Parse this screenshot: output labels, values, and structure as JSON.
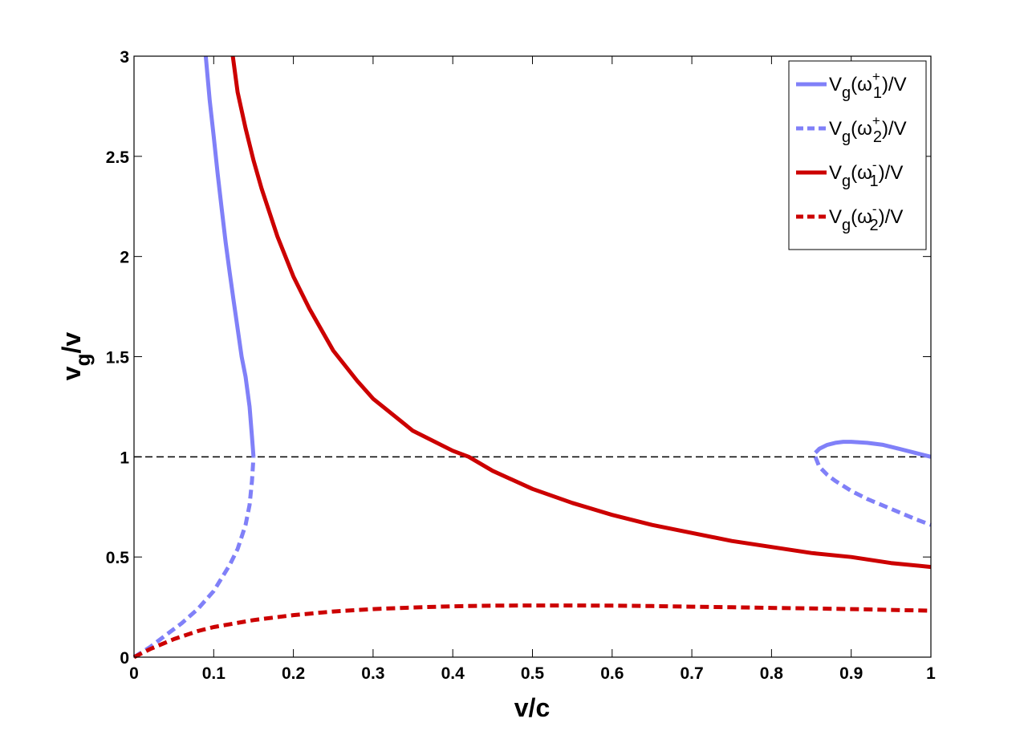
{
  "chart_data": {
    "type": "line",
    "xlabel": "v/c",
    "ylabel_main": "v",
    "ylabel_sub": "g",
    "ylabel_tail": "/v",
    "xlim": [
      0,
      1
    ],
    "ylim": [
      0,
      3
    ],
    "xticks": [
      0,
      0.1,
      0.2,
      0.3,
      0.4,
      0.5,
      0.6,
      0.7,
      0.8,
      0.9,
      1
    ],
    "xtick_labels": [
      "0",
      "0.1",
      "0.2",
      "0.3",
      "0.4",
      "0.5",
      "0.6",
      "0.7",
      "0.8",
      "0.9",
      "1"
    ],
    "yticks": [
      0,
      0.5,
      1,
      1.5,
      2,
      2.5,
      3
    ],
    "ytick_labels": [
      "0",
      "0.5",
      "1",
      "1.5",
      "2",
      "2.5",
      "3"
    ],
    "grid": false,
    "legend_position": "top-right",
    "reference_line": {
      "y": 1,
      "style": "dashed",
      "color": "#000000"
    },
    "series": [
      {
        "legend_main": "V",
        "legend_sub": "g",
        "legend_open": "(ω",
        "legend_sub2": "1",
        "legend_sup": "+",
        "legend_close": ")/V",
        "color": "#8080f8",
        "dash": "solid",
        "segments": [
          {
            "x": [
              0.09,
              0.095,
              0.1,
              0.105,
              0.11,
              0.115,
              0.12,
              0.125,
              0.13,
              0.135,
              0.14,
              0.145,
              0.148,
              0.15
            ],
            "y": [
              3.0,
              2.78,
              2.6,
              2.41,
              2.24,
              2.07,
              1.92,
              1.78,
              1.64,
              1.5,
              1.4,
              1.25,
              1.1,
              1.0
            ]
          },
          {
            "x": [
              0.855,
              0.86,
              0.87,
              0.88,
              0.89,
              0.9,
              0.92,
              0.94,
              0.96,
              0.98,
              1.0
            ],
            "y": [
              1.02,
              1.04,
              1.06,
              1.07,
              1.075,
              1.075,
              1.07,
              1.06,
              1.04,
              1.02,
              1.0
            ]
          }
        ]
      },
      {
        "legend_main": "V",
        "legend_sub": "g",
        "legend_open": "(ω",
        "legend_sub2": "2",
        "legend_sup": "+",
        "legend_close": ")/V",
        "color": "#8080f8",
        "dash": "dashed",
        "segments": [
          {
            "x": [
              0.0,
              0.02,
              0.04,
              0.06,
              0.08,
              0.1,
              0.12,
              0.13,
              0.14,
              0.145,
              0.148,
              0.15
            ],
            "y": [
              0.0,
              0.05,
              0.11,
              0.17,
              0.24,
              0.33,
              0.46,
              0.54,
              0.66,
              0.76,
              0.88,
              1.0
            ]
          },
          {
            "x": [
              0.855,
              0.86,
              0.87,
              0.88,
              0.9,
              0.92,
              0.95,
              0.98,
              1.0
            ],
            "y": [
              1.0,
              0.95,
              0.91,
              0.88,
              0.83,
              0.79,
              0.74,
              0.69,
              0.66
            ]
          }
        ]
      },
      {
        "legend_main": "V",
        "legend_sub": "g",
        "legend_open": "(ω",
        "legend_sub2": "1",
        "legend_sup": "-",
        "legend_close": ")/V",
        "color": "#cc0000",
        "dash": "solid",
        "segments": [
          {
            "x": [
              0.124,
              0.13,
              0.14,
              0.15,
              0.16,
              0.18,
              0.2,
              0.22,
              0.25,
              0.28,
              0.3,
              0.35,
              0.4,
              0.42,
              0.45,
              0.5,
              0.55,
              0.6,
              0.65,
              0.7,
              0.75,
              0.8,
              0.85,
              0.9,
              0.95,
              1.0
            ],
            "y": [
              3.0,
              2.82,
              2.64,
              2.48,
              2.34,
              2.1,
              1.9,
              1.74,
              1.53,
              1.38,
              1.29,
              1.13,
              1.03,
              1.0,
              0.93,
              0.84,
              0.77,
              0.71,
              0.66,
              0.62,
              0.58,
              0.55,
              0.52,
              0.5,
              0.47,
              0.45
            ]
          }
        ]
      },
      {
        "legend_main": "V",
        "legend_sub": "g",
        "legend_open": "(ω",
        "legend_sub2": "2",
        "legend_sup": "-",
        "legend_close": ")/V",
        "color": "#cc0000",
        "dash": "dashed",
        "segments": [
          {
            "x": [
              0.0,
              0.02,
              0.05,
              0.08,
              0.1,
              0.15,
              0.2,
              0.25,
              0.3,
              0.35,
              0.4,
              0.45,
              0.5,
              0.55,
              0.6,
              0.65,
              0.7,
              0.75,
              0.8,
              0.85,
              0.9,
              0.95,
              1.0
            ],
            "y": [
              0.0,
              0.04,
              0.09,
              0.13,
              0.15,
              0.185,
              0.21,
              0.228,
              0.24,
              0.248,
              0.254,
              0.257,
              0.258,
              0.258,
              0.257,
              0.255,
              0.252,
              0.249,
              0.246,
              0.243,
              0.24,
              0.236,
              0.232
            ]
          }
        ]
      }
    ]
  }
}
